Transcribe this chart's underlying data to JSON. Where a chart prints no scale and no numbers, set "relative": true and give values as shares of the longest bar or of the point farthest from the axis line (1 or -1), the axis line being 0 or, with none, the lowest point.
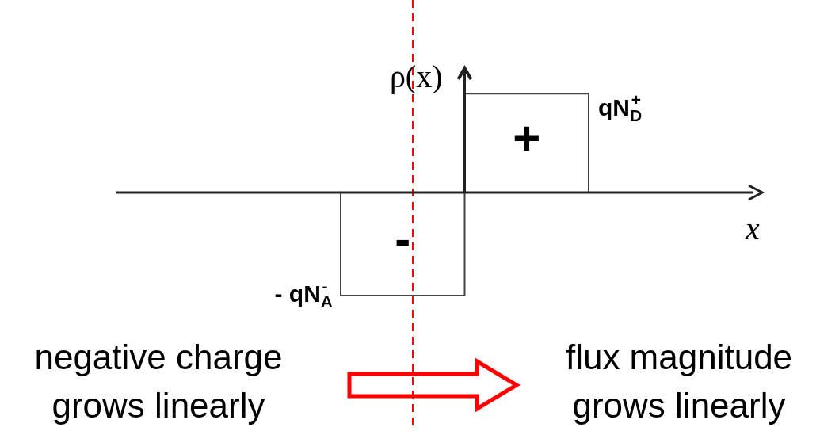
{
  "chart_data": {
    "type": "step",
    "relative": true,
    "categories": [
      null,
      null,
      null,
      null
    ],
    "values": [
      0,
      -1,
      0.96,
      0
    ],
    "color": "#444444",
    "xlabel": "x",
    "ylabel": "ρ(x)",
    "annotations": [
      "-",
      "+",
      "- qN$_{A}$$^{-}$",
      "qN$_{D}$$^{+}$",
      "negative charge grows linearly",
      "flux magnitude grows linearly"
    ]
  }
}
